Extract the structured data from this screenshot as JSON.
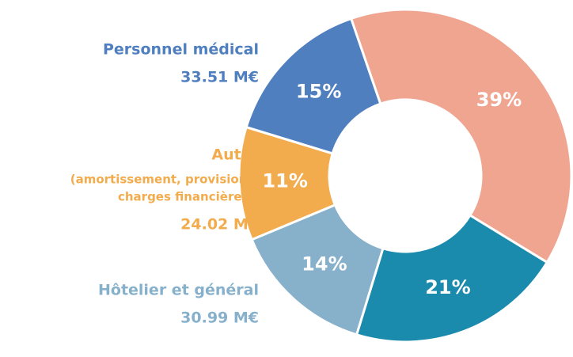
{
  "chart_data": {
    "type": "donut",
    "categories": [
      null,
      null,
      "Hôtelier et général",
      "Autre",
      "Personnel médical"
    ],
    "category_details": [
      null,
      null,
      null,
      [
        "(amortissement, provisions,",
        "charges financières.)"
      ],
      null
    ],
    "amounts": [
      null,
      null,
      "30.99 M€",
      "24.02 M€",
      "33.51 M€"
    ],
    "values": [
      39,
      21,
      14,
      11,
      15
    ],
    "value_labels": [
      "39%",
      "21%",
      "14%",
      "11%",
      "15%"
    ],
    "colors": [
      "#f0a591",
      "#1a8aad",
      "#87b0cb",
      "#f2ac4e",
      "#4f7fbf"
    ]
  }
}
